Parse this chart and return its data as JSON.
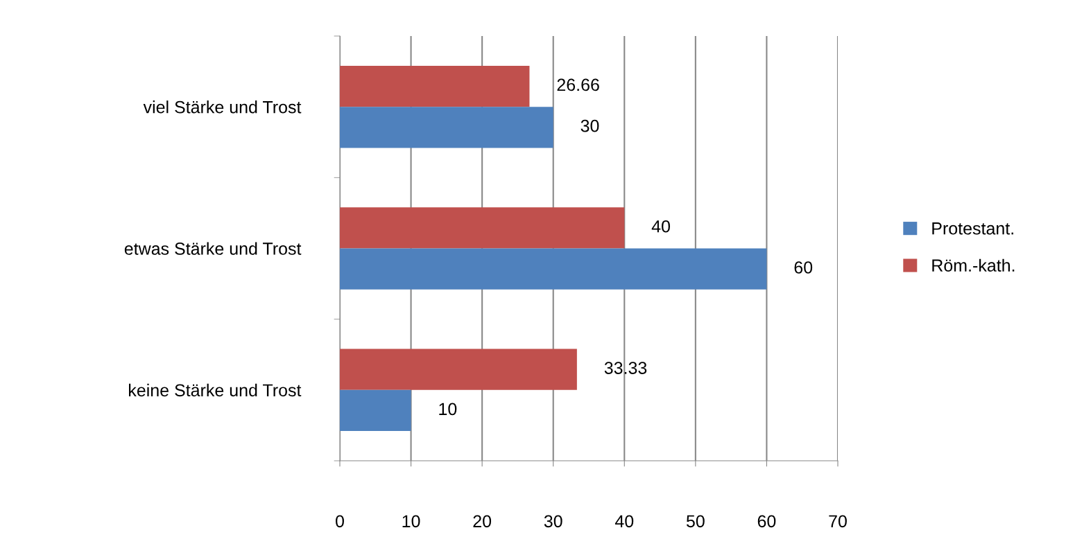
{
  "chart_data": {
    "type": "bar",
    "orientation": "horizontal",
    "categories": [
      "viel Stärke und Trost",
      "etwas Stärke und Trost",
      "keine Stärke und Trost"
    ],
    "series": [
      {
        "name": "Röm.-kath.",
        "color": "#c0504d",
        "values": [
          26.66,
          40,
          33.33
        ]
      },
      {
        "name": "Protestant.",
        "color": "#4f81bd",
        "values": [
          30,
          60,
          10
        ]
      }
    ],
    "xlim": [
      0,
      70
    ],
    "xticks": [
      0,
      10,
      20,
      30,
      40,
      50,
      60,
      70
    ],
    "grid": "x",
    "legend": "right",
    "data_labels": true
  }
}
